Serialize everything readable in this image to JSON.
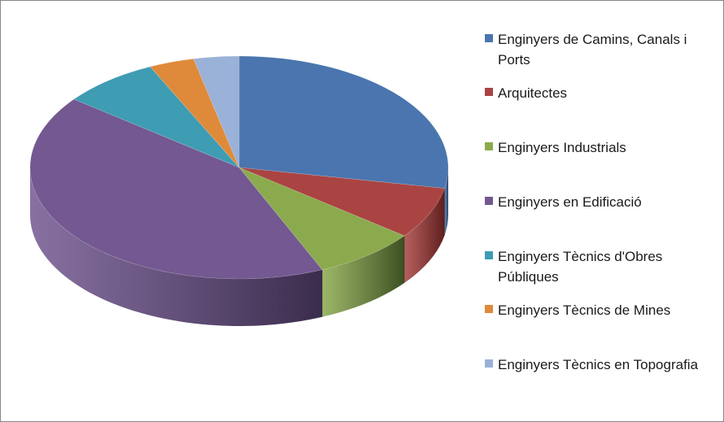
{
  "chart_data": {
    "type": "pie",
    "style": "3d",
    "legend_position": "right",
    "slices": [
      {
        "label": "Enginyers de Camins, Canals i Ports",
        "value": 28.0,
        "color": "#4A75AE",
        "dark": "#2B4566"
      },
      {
        "label": "Arquitectes",
        "value": 7.5,
        "color": "#A94442",
        "dark": "#5E1F1E"
      },
      {
        "label": "Enginyers Industrials",
        "value": 8.0,
        "color": "#8BAA4E",
        "dark": "#3D4F22"
      },
      {
        "label": "Enginyers en Edificació",
        "value": 42.0,
        "color": "#735891",
        "dark": "#3A2C4C"
      },
      {
        "label": "Enginyers Tècnics d'Obres Públiques",
        "value": 7.5,
        "color": "#3E9CB3",
        "dark": "#1E5563"
      },
      {
        "label": "Enginyers Tècnics de Mines",
        "value": 3.5,
        "color": "#DE8A3A",
        "dark": "#7A4A1B"
      },
      {
        "label": "Enginyers Tècnics en Topografia",
        "value": 3.5,
        "color": "#9AB1D8",
        "dark": "#56698A"
      }
    ]
  }
}
